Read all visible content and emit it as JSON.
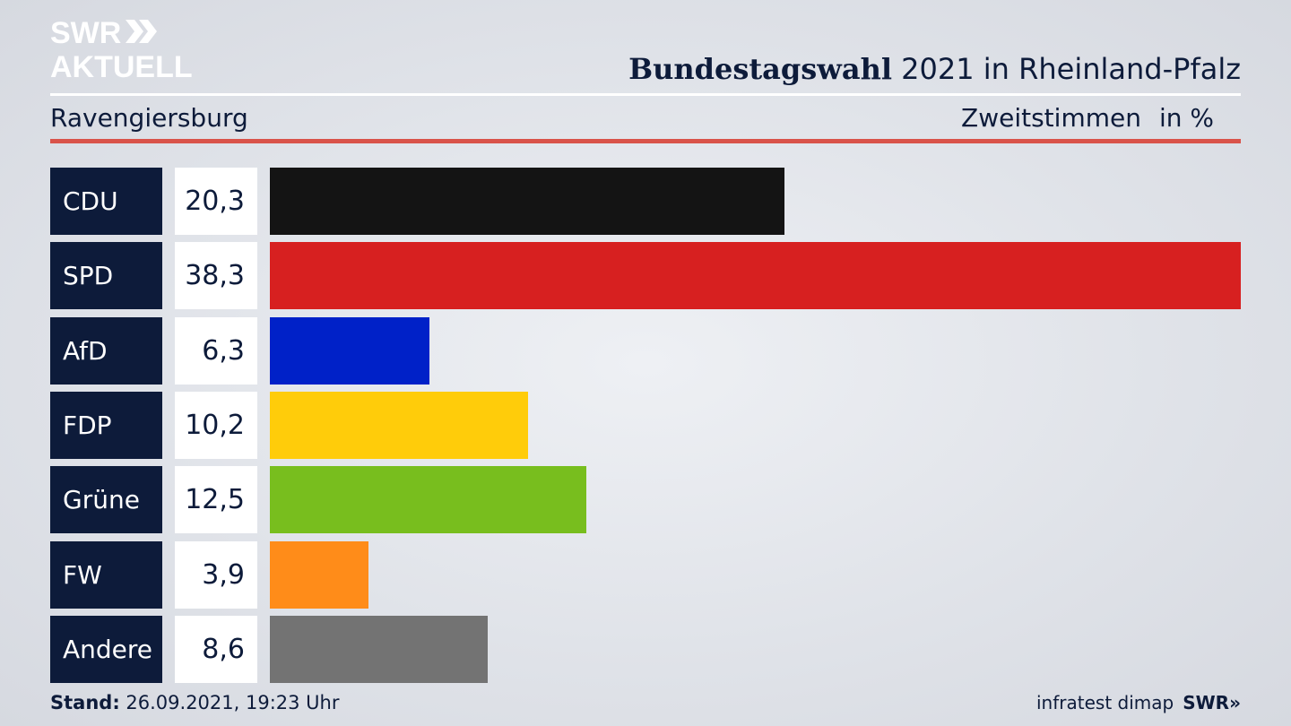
{
  "brand": {
    "line1": "SWR",
    "line2": "AKTUELL",
    "chevrons": "»"
  },
  "header": {
    "title_bold": "Bundestagswahl",
    "title_rest": " 2021 in Rheinland-Pfalz",
    "region": "Ravengiersburg",
    "measure": "Zweitstimmen",
    "unit": "in %"
  },
  "chart_data": {
    "type": "bar",
    "orientation": "horizontal",
    "categories": [
      "CDU",
      "SPD",
      "AfD",
      "FDP",
      "Grüne",
      "FW",
      "Andere"
    ],
    "values": [
      20.3,
      38.3,
      6.3,
      10.2,
      12.5,
      3.9,
      8.6
    ],
    "value_labels": [
      "20,3",
      "38,3",
      "6,3",
      "10,2",
      "12,5",
      "3,9",
      "8,6"
    ],
    "colors": [
      "#141414",
      "#d72020",
      "#0021c8",
      "#ffcc0a",
      "#78be1e",
      "#ff8c19",
      "#737373"
    ],
    "xlim": [
      0,
      38.3
    ],
    "grid": false
  },
  "footer": {
    "stand_label": "Stand:",
    "stand_value": " 26.09.2021, 19:23 Uhr",
    "source": "infratest dimap",
    "swr": "SWR»"
  }
}
